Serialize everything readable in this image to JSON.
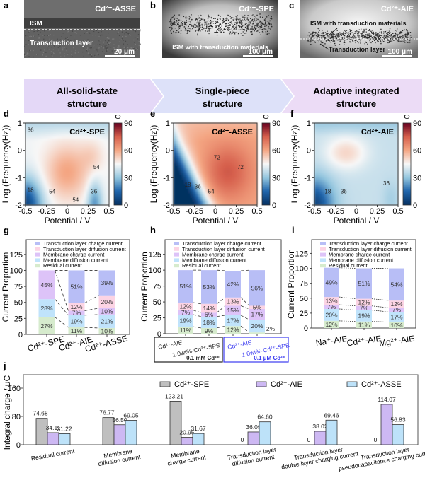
{
  "micrographs": [
    {
      "label": "a",
      "title": "Cd²⁺-ASSE",
      "annotations": [
        "ISM",
        "Transduction layer"
      ],
      "scale_bar": "20 μm"
    },
    {
      "label": "b",
      "title": "Cd²⁺-SPE",
      "annotations": [
        "ISM with transduction materials"
      ],
      "scale_bar": "100 μm"
    },
    {
      "label": "c",
      "title": "Cd²⁺-AIE",
      "annotations": [
        "ISM with transduction materials",
        "Transduction layer"
      ],
      "scale_bar": "100 μm"
    }
  ],
  "structures": [
    {
      "lines": [
        "All-solid-state",
        "structure"
      ],
      "color": "#e4d8f7"
    },
    {
      "lines": [
        "Single-piece",
        "structure"
      ],
      "color": "#dde1f9"
    },
    {
      "lines": [
        "Adaptive integrated",
        "structure"
      ],
      "color": "#ecdcf6"
    }
  ],
  "chart_data": [
    {
      "label": "d",
      "type": "heatmap",
      "title": "Cd²⁺-SPE",
      "xlabel": "Potential / V",
      "ylabel": "Log (Frequency(Hz))",
      "xlim": [
        -0.5,
        0.5
      ],
      "ylim": [
        -2,
        1
      ],
      "xticks": [
        "-0.5",
        "-0.25",
        "0",
        "0.25",
        "0.5"
      ],
      "yticks": [
        "1",
        "0",
        "-1",
        "-2"
      ],
      "colorbar": {
        "label": "Φ",
        "range": [
          0,
          90
        ],
        "ticks": [
          "90",
          "60",
          "30",
          "0"
        ],
        "colors": [
          "#053061",
          "#2166ac",
          "#92c5de",
          "#f7f7f7",
          "#f4a582",
          "#d6604d",
          "#67001f"
        ]
      },
      "contour_labels": [
        {
          "text": "36",
          "x": -0.44,
          "y": 0.75
        },
        {
          "text": "18",
          "x": -0.44,
          "y": -1.45
        },
        {
          "text": "54",
          "x": -0.18,
          "y": -1.5
        },
        {
          "text": "54",
          "x": 0.35,
          "y": -0.6
        },
        {
          "text": "36",
          "x": 0.32,
          "y": -1.5
        },
        {
          "text": "54",
          "x": 0.1,
          "y": -1.8
        }
      ]
    },
    {
      "label": "e",
      "type": "heatmap",
      "title": "Cd²⁺-ASSE",
      "xlabel": "Potential / V",
      "ylabel": "Log (Frequency(Hz))",
      "xlim": [
        -0.5,
        0.5
      ],
      "ylim": [
        -2,
        1
      ],
      "xticks": [
        "-0.5",
        "-0.25",
        "0",
        "0.25",
        "0.5"
      ],
      "yticks": [
        "1",
        "0",
        "-1",
        "-2"
      ],
      "colorbar": {
        "label": "Φ",
        "range": [
          0,
          90
        ],
        "ticks": [
          "90",
          "60",
          "30",
          "0"
        ],
        "colors": [
          "#053061",
          "#2166ac",
          "#92c5de",
          "#f7f7f7",
          "#f4a582",
          "#d6604d",
          "#67001f"
        ]
      },
      "contour_labels": [
        {
          "text": "72",
          "x": 0.02,
          "y": -0.25
        },
        {
          "text": "72",
          "x": 0.3,
          "y": -0.6
        },
        {
          "text": "18",
          "x": -0.33,
          "y": -1.25
        },
        {
          "text": "36",
          "x": -0.21,
          "y": -1.32
        },
        {
          "text": "54",
          "x": -0.05,
          "y": -1.5
        }
      ]
    },
    {
      "label": "f",
      "type": "heatmap",
      "title": "Cd²⁺-AIE",
      "xlabel": "Potential / V",
      "ylabel": "Log (Frequency(Hz))",
      "xlim": [
        -0.5,
        0.5
      ],
      "ylim": [
        -2,
        1
      ],
      "xticks": [
        "-0.5",
        "-0.25",
        "0",
        "0.25",
        "0.5"
      ],
      "yticks": [
        "1",
        "0",
        "-1",
        "-2"
      ],
      "colorbar": {
        "label": "Φ",
        "range": [
          0,
          90
        ],
        "ticks": [
          "90",
          "60",
          "30",
          "0"
        ],
        "colors": [
          "#053061",
          "#2166ac",
          "#92c5de",
          "#f7f7f7",
          "#f4a582",
          "#d6604d",
          "#67001f"
        ]
      },
      "contour_labels": [
        {
          "text": "18",
          "x": -0.34,
          "y": -1.5
        },
        {
          "text": "36",
          "x": -0.15,
          "y": -1.5
        },
        {
          "text": "36",
          "x": 0.36,
          "y": -1.2
        }
      ]
    },
    {
      "label": "g",
      "type": "bar",
      "stacked": true,
      "ylabel": "Current Proportion",
      "ylim": [
        0,
        148
      ],
      "yticks": [
        "0",
        "25",
        "50",
        "75",
        "100",
        "125"
      ],
      "categories": [
        "Cd²⁺-SPE",
        "Cd²⁺-AIE",
        "Cd²⁺-ASSE"
      ],
      "series": [
        {
          "name": "Residual current",
          "color": "#d6ebcd",
          "values": [
            27,
            11,
            10
          ]
        },
        {
          "name": "Membrane  diffusion current",
          "color": "#c0e3fb",
          "values": [
            28,
            19,
            21
          ]
        },
        {
          "name": "Membrane  charge current",
          "color": "#ddc3f8",
          "values": [
            45,
            7,
            10
          ]
        },
        {
          "name": "Transduction layer diffusion current",
          "color": "#fcd4e4",
          "values": [
            0,
            12,
            20
          ]
        },
        {
          "name": "Transduction layer charge current",
          "color": "#b8bef6",
          "values": [
            0,
            51,
            39
          ]
        }
      ]
    },
    {
      "label": "h",
      "type": "bar",
      "stacked": true,
      "ylabel": "Current Proportion",
      "ylim": [
        0,
        148
      ],
      "yticks": [
        "0",
        "25",
        "50",
        "75",
        "100",
        "125"
      ],
      "categories": [
        "Cd²⁺-AIE",
        "1.0wt%-Cd²⁺-SPE",
        "Cd²⁺-AIE",
        "1.0wt%-Cd²⁺-SPE"
      ],
      "groups": [
        {
          "name": "0.1 mM Cd²⁺",
          "color": "#222222"
        },
        {
          "name": "0.1 μM Cd²⁺",
          "color": "#3b3bf0"
        }
      ],
      "series": [
        {
          "name": "Residual current",
          "color": "#d6ebcd",
          "values": [
            11,
            9,
            12,
            2
          ]
        },
        {
          "name": "Membrane  diffusion current",
          "color": "#c0e3fb",
          "values": [
            19,
            18,
            17,
            20
          ]
        },
        {
          "name": "Membrane  charge current",
          "color": "#ddc3f8",
          "values": [
            7,
            6,
            15,
            17
          ]
        },
        {
          "name": "Transduction layer diffusion current",
          "color": "#fcd4e4",
          "values": [
            12,
            14,
            13,
            5
          ]
        },
        {
          "name": "Transduction layer charge current",
          "color": "#b8bef6",
          "values": [
            51,
            53,
            42,
            56
          ]
        }
      ]
    },
    {
      "label": "i",
      "type": "bar",
      "stacked": true,
      "ylabel": "Current Proportion",
      "ylim": [
        0,
        148
      ],
      "yticks": [
        "0",
        "25",
        "50",
        "75",
        "100",
        "125"
      ],
      "categories": [
        "Na⁺-AIE",
        "Cd²⁺-AIE",
        "Mg²⁺-AIE"
      ],
      "series": [
        {
          "name": "Residual current",
          "color": "#d6ebcd",
          "values": [
            12,
            11,
            10
          ]
        },
        {
          "name": "Membrane  diffusion current",
          "color": "#c0e3fb",
          "values": [
            20,
            19,
            17
          ]
        },
        {
          "name": "Membrane  charge current",
          "color": "#ddc3f8",
          "values": [
            7,
            7,
            7
          ]
        },
        {
          "name": "Transduction layer diffusion current",
          "color": "#fcd4e4",
          "values": [
            13,
            12,
            12
          ]
        },
        {
          "name": "Transduction layer charge current",
          "color": "#b8bef6",
          "values": [
            49,
            51,
            54
          ]
        }
      ]
    },
    {
      "label": "j",
      "type": "bar",
      "ylabel": "Integral charge / μC",
      "ylim": [
        0,
        198
      ],
      "yticks": [
        "0",
        "80",
        "160"
      ],
      "categories": [
        [
          "Residual current"
        ],
        [
          "Membrane",
          "diffusion current"
        ],
        [
          "Membrane",
          "charge current"
        ],
        [
          "Transduction layer",
          "diffusion current"
        ],
        [
          "Transduction layer",
          "double layer charging current"
        ],
        [
          "Transduction layer",
          "pseudocapacitance charging current"
        ]
      ],
      "legend": "top-right",
      "series": [
        {
          "name": "Cd²⁺-SPE",
          "color": "#bfbfbf",
          "values": [
            74.68,
            76.77,
            123.21,
            0,
            0,
            0
          ],
          "labels": [
            "74.68",
            "76.77",
            "123.21",
            "0",
            "0",
            "0"
          ]
        },
        {
          "name": "Cd²⁺-AIE",
          "color": "#cdb8f3",
          "values": [
            34.11,
            56.5,
            20.95,
            36.09,
            38.02,
            114.07
          ],
          "labels": [
            "34.11",
            "56.50",
            "20.95",
            "36.09",
            "38.02",
            "114.07"
          ]
        },
        {
          "name": "Cd²⁺-ASSE",
          "color": "#bde2f9",
          "values": [
            31.22,
            69.05,
            31.67,
            64.6,
            69.46,
            56.83
          ],
          "labels": [
            "31.22",
            "69.05",
            "31.67",
            "64.60",
            "69.46",
            "56.83"
          ]
        }
      ]
    }
  ]
}
